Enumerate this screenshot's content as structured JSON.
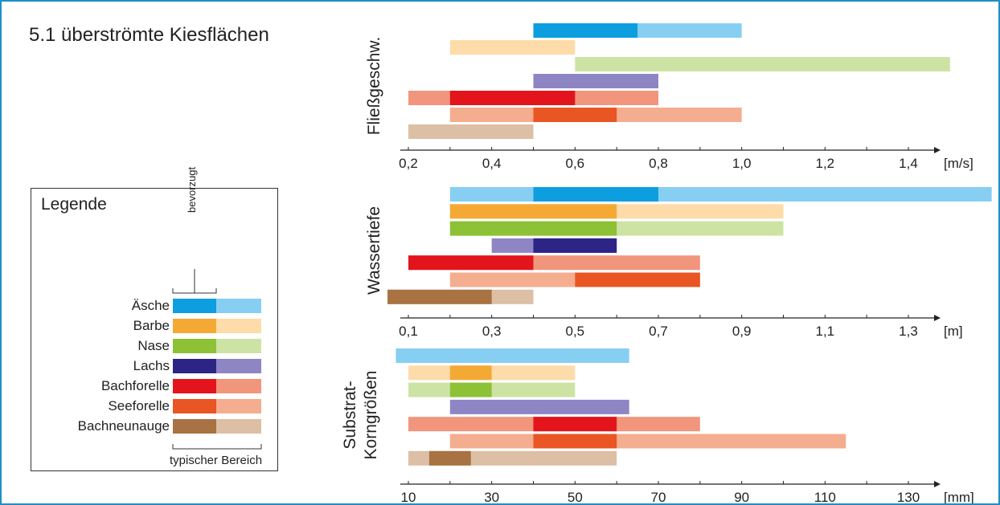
{
  "title": "5.1 überströmte Kiesflächen",
  "legend": {
    "title": "Legende",
    "preferred_label": "bevorzugt",
    "typical_label": "typischer Bereich",
    "items": [
      {
        "name": "Äsche",
        "dark": "#0d9ee0",
        "light": "#86cff3"
      },
      {
        "name": "Barbe",
        "dark": "#f5a935",
        "light": "#fddcaa"
      },
      {
        "name": "Nase",
        "dark": "#8dc136",
        "light": "#cde3a4"
      },
      {
        "name": "Lachs",
        "dark": "#2c2586",
        "light": "#8e85c4"
      },
      {
        "name": "Bachforelle",
        "dark": "#e3141c",
        "light": "#f1957d"
      },
      {
        "name": "Seeforelle",
        "dark": "#ea5524",
        "light": "#f4ad8f"
      },
      {
        "name": "Bachneunauge",
        "dark": "#a87242",
        "light": "#dcbfa4"
      }
    ]
  },
  "chart_data": [
    {
      "type": "bar",
      "orientation": "horizontal-range",
      "ylabel": "Fließgeschw.",
      "unit": "[m/s]",
      "xlim": [
        0.2,
        1.6
      ],
      "xticks": [
        "0,2",
        "0,4",
        "0,6",
        "0,8",
        "1,0",
        "1,2",
        "1,4"
      ],
      "xtick_values": [
        0.2,
        0.4,
        0.6,
        0.8,
        1.0,
        1.2,
        1.4
      ],
      "series": [
        {
          "species": "Äsche",
          "typical": [
            0.5,
            1.0
          ],
          "preferred": [
            0.5,
            0.75
          ]
        },
        {
          "species": "Barbe",
          "typical": [
            0.3,
            0.6
          ],
          "preferred": null
        },
        {
          "species": "Nase",
          "typical": [
            0.6,
            1.5
          ],
          "preferred": null
        },
        {
          "species": "Lachs",
          "typical": [
            0.5,
            0.8
          ],
          "preferred": null
        },
        {
          "species": "Bachforelle",
          "typical": [
            0.2,
            0.8
          ],
          "preferred": [
            0.3,
            0.6
          ]
        },
        {
          "species": "Seeforelle",
          "typical": [
            0.3,
            1.0
          ],
          "preferred": [
            0.5,
            0.7
          ]
        },
        {
          "species": "Bachneunauge",
          "typical": [
            0.2,
            0.5
          ],
          "preferred": null
        }
      ]
    },
    {
      "type": "bar",
      "orientation": "horizontal-range",
      "ylabel": "Wassertiefe",
      "unit": "[m]",
      "xlim": [
        0.1,
        1.4
      ],
      "xticks": [
        "0,1",
        "0,3",
        "0,5",
        "0,7",
        "0,9",
        "1,1",
        "1,3"
      ],
      "xtick_values": [
        0.1,
        0.3,
        0.5,
        0.7,
        0.9,
        1.1,
        1.3
      ],
      "series": [
        {
          "species": "Äsche",
          "typical": [
            0.2,
            1.5
          ],
          "preferred": [
            0.4,
            0.7
          ]
        },
        {
          "species": "Barbe",
          "typical": [
            0.2,
            1.0
          ],
          "preferred": [
            0.2,
            0.6
          ]
        },
        {
          "species": "Nase",
          "typical": [
            0.2,
            1.0
          ],
          "preferred": [
            0.2,
            0.6
          ]
        },
        {
          "species": "Lachs",
          "typical": [
            0.3,
            0.6
          ],
          "preferred": [
            0.4,
            0.6
          ]
        },
        {
          "species": "Bachforelle",
          "typical": [
            0.1,
            0.8
          ],
          "preferred": [
            0.1,
            0.4
          ]
        },
        {
          "species": "Seeforelle",
          "typical": [
            0.2,
            0.8
          ],
          "preferred": [
            0.5,
            0.8
          ]
        },
        {
          "species": "Bachneunauge",
          "typical": [
            0.05,
            0.4
          ],
          "preferred": [
            0.05,
            0.3
          ]
        }
      ]
    },
    {
      "type": "bar",
      "orientation": "horizontal-range",
      "ylabel": "Substrat-Korngrößen",
      "ylabel_lines": [
        "Substrat-",
        "Korngrößen"
      ],
      "unit": "[mm]",
      "xlim": [
        10,
        150
      ],
      "xticks": [
        "10",
        "30",
        "50",
        "70",
        "90",
        "110",
        "130"
      ],
      "xtick_values": [
        10,
        30,
        50,
        70,
        90,
        110,
        130
      ],
      "series": [
        {
          "species": "Äsche",
          "typical": [
            7,
            63
          ],
          "preferred": null
        },
        {
          "species": "Barbe",
          "typical": [
            10,
            50
          ],
          "preferred": [
            20,
            30
          ]
        },
        {
          "species": "Nase",
          "typical": [
            10,
            50
          ],
          "preferred": [
            20,
            30
          ]
        },
        {
          "species": "Lachs",
          "typical": [
            20,
            63
          ],
          "preferred": null
        },
        {
          "species": "Bachforelle",
          "typical": [
            10,
            80
          ],
          "preferred": [
            40,
            60
          ]
        },
        {
          "species": "Seeforelle",
          "typical": [
            20,
            115
          ],
          "preferred": [
            40,
            60
          ]
        },
        {
          "species": "Bachneunauge",
          "typical": [
            10,
            60
          ],
          "preferred": [
            15,
            25
          ]
        }
      ]
    }
  ]
}
